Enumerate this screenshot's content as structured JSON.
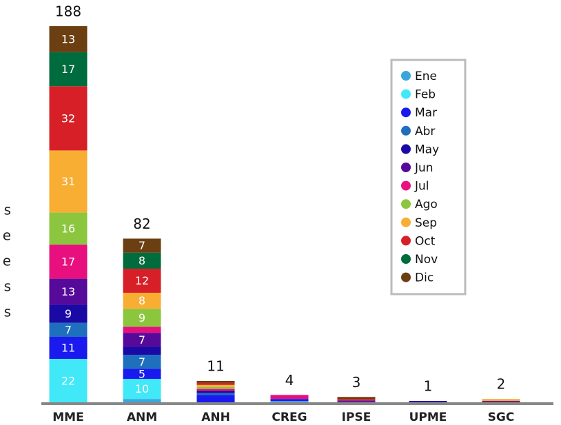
{
  "chart_data": {
    "type": "stacked_bar",
    "categories": [
      "MME",
      "ANM",
      "ANH",
      "CREG",
      "IPSE",
      "UPME",
      "SGC"
    ],
    "totals": [
      188,
      82,
      11,
      4,
      3,
      1,
      2
    ],
    "side_text": [
      "s",
      "e",
      "e",
      "s",
      "s"
    ],
    "series": [
      {
        "name": "Ene",
        "color": "#3aa6dd",
        "values": [
          0,
          2,
          0,
          1,
          0,
          0,
          0
        ]
      },
      {
        "name": "Feb",
        "color": "#40e8f8",
        "values": [
          22,
          10,
          0,
          0,
          0,
          0,
          0
        ]
      },
      {
        "name": "Mar",
        "color": "#1a1aee",
        "values": [
          11,
          5,
          4,
          1,
          1,
          0,
          0
        ]
      },
      {
        "name": "Abr",
        "color": "#1f6fbf",
        "values": [
          7,
          7,
          1,
          0,
          0,
          0,
          0
        ]
      },
      {
        "name": "May",
        "color": "#1a0aa5",
        "values": [
          9,
          4,
          1,
          0,
          0,
          1,
          0
        ]
      },
      {
        "name": "Jun",
        "color": "#560a9a",
        "values": [
          13,
          7,
          0,
          0,
          0,
          0,
          1
        ]
      },
      {
        "name": "Jul",
        "color": "#e8107f",
        "values": [
          17,
          3,
          1,
          2,
          0,
          0,
          0
        ]
      },
      {
        "name": "Ago",
        "color": "#8cc63f",
        "values": [
          16,
          9,
          1,
          0,
          0,
          0,
          0
        ]
      },
      {
        "name": "Sep",
        "color": "#f7ae33",
        "values": [
          31,
          8,
          1,
          0,
          0,
          0,
          1
        ]
      },
      {
        "name": "Oct",
        "color": "#d71f27",
        "values": [
          32,
          12,
          1,
          0,
          1,
          0,
          0
        ]
      },
      {
        "name": "Nov",
        "color": "#006b3c",
        "values": [
          17,
          8,
          0,
          0,
          0,
          0,
          0
        ]
      },
      {
        "name": "Dic",
        "color": "#6b3f12",
        "values": [
          13,
          7,
          1,
          0,
          1,
          0,
          0
        ]
      }
    ]
  }
}
